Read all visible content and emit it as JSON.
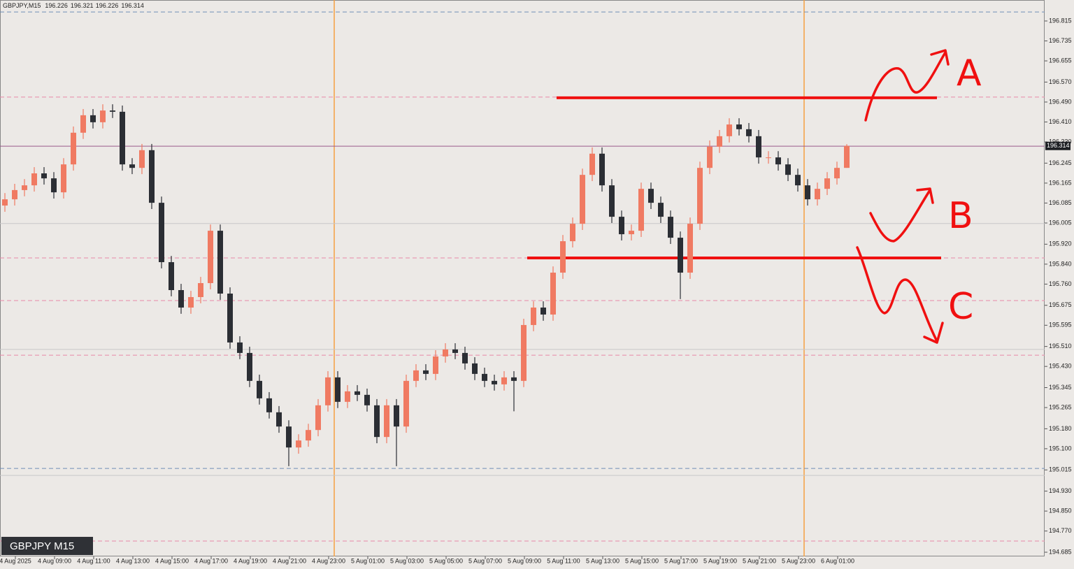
{
  "chart_data": {
    "type": "candlestick",
    "symbol": "GBPJPY,M15",
    "badge": "GBPJPY M15",
    "annotations": [
      "A",
      "B",
      "C"
    ],
    "bull_color": "#f07a62",
    "bear_color": "#2b2e34",
    "ylim": [
      194.685,
      196.815
    ],
    "yticks": [
      196.815,
      196.735,
      196.655,
      {
        "value": 196.57,
        "label": "196.570"
      },
      {
        "value": 196.49,
        "label": "196.490"
      },
      {
        "value": 196.41,
        "label": "196.410"
      },
      {
        "value": 196.33,
        "label": "196.330"
      },
      196.245,
      196.165,
      196.085,
      196.005,
      {
        "value": 195.92,
        "label": "195.920"
      },
      {
        "value": 195.84,
        "label": "195.840"
      },
      {
        "value": 195.76,
        "label": "195.760"
      },
      195.675,
      195.595,
      {
        "value": 195.51,
        "label": "195.510"
      },
      {
        "value": 195.43,
        "label": "195.430"
      },
      195.345,
      195.265,
      {
        "value": 195.18,
        "label": "195.180"
      },
      {
        "value": 195.1,
        "label": "195.100"
      },
      195.015,
      {
        "value": 194.93,
        "label": "194.930"
      },
      {
        "value": 194.85,
        "label": "194.850"
      },
      {
        "value": 194.77,
        "label": "194.770"
      },
      194.685
    ],
    "x_labels": [
      "4 Aug 2025",
      "4 Aug 09:00",
      "4 Aug 11:00",
      "4 Aug 13:00",
      "4 Aug 15:00",
      "4 Aug 17:00",
      "4 Aug 19:00",
      "4 Aug 21:00",
      "4 Aug 23:00",
      "5 Aug 01:00",
      "5 Aug 03:00",
      "5 Aug 05:00",
      "5 Aug 07:00",
      "5 Aug 09:00",
      "5 Aug 11:00",
      "5 Aug 13:00",
      "5 Aug 15:00",
      "5 Aug 17:00",
      "5 Aug 19:00",
      "5 Aug 21:00",
      "5 Aug 23:00",
      "6 Aug 01:00"
    ],
    "hlines": [
      {
        "value": 196.851,
        "color": "#6f8fb8",
        "dashed": true
      },
      {
        "value": 196.51,
        "color": "#e889a8",
        "dashed": true
      },
      {
        "value": 196.313,
        "color": "#9a5a8a",
        "dashed": false
      },
      {
        "value": 196.003,
        "color": "#c8c8c8",
        "dashed": false
      },
      {
        "value": 195.865,
        "color": "#e889a8",
        "dashed": true
      },
      {
        "value": 195.694,
        "color": "#e889a8",
        "dashed": true
      },
      {
        "value": 195.498,
        "color": "#c8c8c8",
        "dashed": false
      },
      {
        "value": 195.475,
        "color": "#e889a8",
        "dashed": true
      },
      {
        "value": 195.021,
        "color": "#6f8fb8",
        "dashed": true
      },
      {
        "value": 194.993,
        "color": "#c8c8c8",
        "dashed": false
      },
      {
        "value": 194.73,
        "color": "#e889a8",
        "dashed": true
      }
    ],
    "drawn_levels": [
      196.507,
      195.865
    ],
    "open": [
      196.075,
      196.1,
      196.137,
      196.156,
      196.204,
      196.184,
      196.128,
      196.24,
      196.367,
      196.437,
      196.409,
      196.456,
      196.451,
      196.24,
      196.226,
      196.297,
      196.086,
      195.848,
      195.736,
      195.666,
      195.708,
      195.764,
      195.974,
      195.722,
      195.526,
      195.484,
      195.372,
      195.302,
      195.246,
      195.189,
      195.105,
      195.133,
      195.175,
      195.274,
      195.386,
      195.288,
      195.33,
      195.316,
      195.274,
      195.147,
      195.274,
      195.189,
      195.372,
      195.414,
      195.4,
      195.47,
      195.498,
      195.484,
      195.442,
      195.4,
      195.372,
      195.358,
      195.386,
      195.372,
      195.596,
      195.666,
      195.638,
      195.806,
      195.932,
      196.002,
      196.198,
      196.283,
      196.156,
      196.03,
      195.96,
      195.974,
      196.142,
      196.086,
      196.03,
      195.946,
      195.806,
      196.002,
      196.226,
      196.311,
      196.353,
      196.4,
      196.381,
      196.353,
      196.268,
      196.268,
      196.24,
      196.198,
      196.156,
      196.1,
      196.142,
      196.184,
      196.226
    ],
    "high": [
      196.125,
      196.162,
      196.181,
      196.229,
      196.229,
      196.209,
      196.265,
      196.392,
      196.462,
      196.462,
      196.481,
      196.481,
      196.476,
      196.265,
      196.322,
      196.322,
      196.111,
      195.873,
      195.761,
      195.733,
      195.789,
      195.999,
      195.999,
      195.747,
      195.551,
      195.509,
      195.397,
      195.327,
      195.271,
      195.214,
      195.158,
      195.2,
      195.299,
      195.411,
      195.411,
      195.355,
      195.355,
      195.341,
      195.299,
      195.299,
      195.299,
      195.397,
      195.439,
      195.439,
      195.495,
      195.523,
      195.523,
      195.509,
      195.467,
      195.425,
      195.397,
      195.411,
      195.411,
      195.621,
      195.691,
      195.691,
      195.831,
      195.957,
      196.027,
      196.223,
      196.308,
      196.308,
      196.181,
      196.055,
      195.999,
      196.167,
      196.167,
      196.111,
      196.055,
      195.971,
      196.027,
      196.251,
      196.336,
      196.378,
      196.425,
      196.425,
      196.406,
      196.378,
      196.293,
      196.293,
      196.265,
      196.223,
      196.181,
      196.167,
      196.209,
      196.251,
      196.321
    ],
    "low": [
      196.05,
      196.075,
      196.112,
      196.131,
      196.159,
      196.103,
      196.103,
      196.215,
      196.342,
      196.384,
      196.384,
      196.426,
      196.215,
      196.201,
      196.201,
      196.061,
      195.823,
      195.711,
      195.641,
      195.641,
      195.683,
      195.739,
      195.697,
      195.501,
      195.459,
      195.347,
      195.277,
      195.221,
      195.164,
      195.03,
      195.08,
      195.108,
      195.15,
      195.249,
      195.263,
      195.263,
      195.291,
      195.249,
      195.122,
      195.122,
      195.03,
      195.164,
      195.347,
      195.375,
      195.375,
      195.445,
      195.459,
      195.417,
      195.375,
      195.347,
      195.333,
      195.333,
      195.25,
      195.347,
      195.571,
      195.613,
      195.613,
      195.781,
      195.907,
      195.977,
      196.173,
      196.131,
      196.005,
      195.935,
      195.935,
      195.949,
      196.061,
      196.005,
      195.921,
      195.7,
      195.781,
      195.977,
      196.201,
      196.286,
      196.328,
      196.356,
      196.328,
      196.243,
      196.243,
      196.215,
      196.173,
      196.131,
      196.075,
      196.075,
      196.117,
      196.159,
      196.226
    ],
    "close": [
      196.1,
      196.137,
      196.156,
      196.204,
      196.184,
      196.128,
      196.24,
      196.367,
      196.437,
      196.409,
      196.456,
      196.451,
      196.24,
      196.226,
      196.297,
      196.086,
      195.848,
      195.736,
      195.666,
      195.708,
      195.764,
      195.974,
      195.722,
      195.526,
      195.484,
      195.372,
      195.302,
      195.246,
      195.189,
      195.105,
      195.133,
      195.175,
      195.274,
      195.386,
      195.288,
      195.33,
      195.316,
      195.274,
      195.147,
      195.274,
      195.189,
      195.372,
      195.414,
      195.4,
      195.47,
      195.498,
      195.484,
      195.442,
      195.4,
      195.372,
      195.358,
      195.386,
      195.372,
      195.596,
      195.666,
      195.638,
      195.806,
      195.932,
      196.002,
      196.198,
      196.283,
      196.156,
      196.03,
      195.96,
      195.974,
      196.142,
      196.086,
      196.03,
      195.946,
      195.806,
      196.002,
      196.226,
      196.311,
      196.353,
      196.4,
      196.381,
      196.353,
      196.268,
      196.268,
      196.24,
      196.198,
      196.156,
      196.1,
      196.142,
      196.184,
      196.226,
      196.314
    ]
  }
}
